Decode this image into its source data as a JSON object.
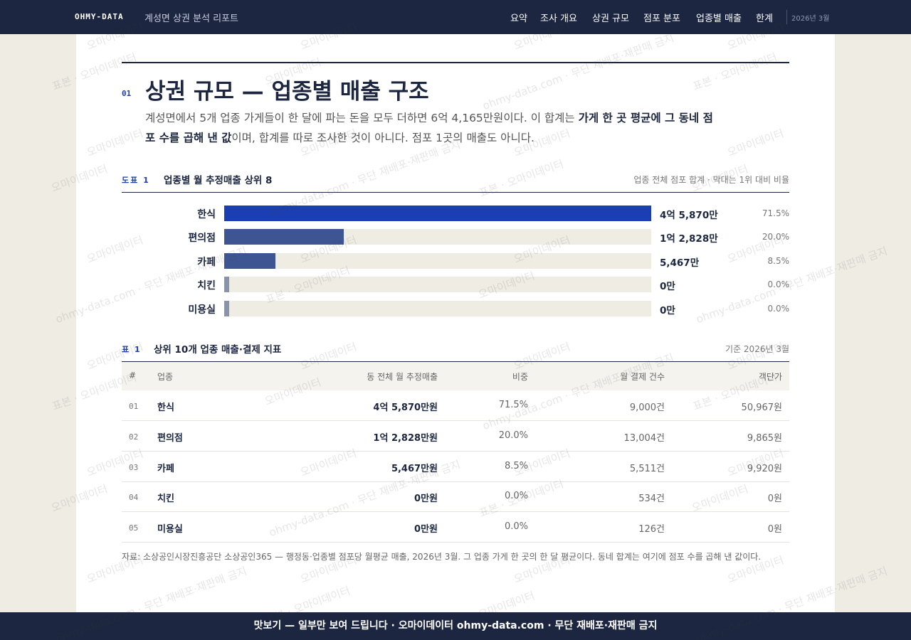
{
  "nav": {
    "brand": "OHMY-DATA",
    "subtitle": "계성면 상권 분석 리포트",
    "links": [
      "요약",
      "조사 개요",
      "상권 규모",
      "점포 분포",
      "업종별 매출",
      "한계"
    ],
    "date": "2026년 3월"
  },
  "section": {
    "number": "01",
    "title": "상권 규모 — 업종별 매출 구조",
    "lead": [
      "계성면에서 5개 업종 가게들이 한 달에 파는 돈을 모두 더하면 6억 4,165만원이다. 이 합계는 ",
      "가게 한 곳 평균에 그 동네 점포 수를 곱해 낸 값",
      "이며, 합계를 따로 조사한 것이 아니다. 점포 1곳의 매출도 아니다."
    ]
  },
  "chart_data": {
    "type": "bar",
    "orientation": "horizontal",
    "label": "도표 1",
    "title": "업종별 월 추정매출 상위 8",
    "note": "업종 전체 점포 합계 · 막대는 1위 대비 비율",
    "categories": [
      "한식",
      "편의점",
      "카페",
      "치킨",
      "미용실"
    ],
    "values": [
      45870,
      12828,
      5467,
      0,
      0
    ],
    "value_labels": [
      "4억 5,870만",
      "1억 2,828만",
      "5,467만",
      "0만",
      "0만"
    ],
    "colors": [
      "#1b3fb3",
      "#3d5592",
      "#3d5592",
      "#8a93ad",
      "#8a93ad"
    ],
    "shares": [
      "71.5%",
      "20.0%",
      "8.5%",
      "0.0%",
      "0.0%"
    ]
  },
  "table": {
    "label": "표 1",
    "title": "상위 10개 업종 매출·결제 지표",
    "note": "기준 2026년 3월",
    "headers": [
      "#",
      "업종",
      "동 전체 월 추정매출",
      "비중",
      "월 결제 건수",
      "객단가"
    ],
    "rows": [
      [
        "01",
        "한식",
        "4억 5,870만원",
        "71.5%",
        "9,000건",
        "50,967원"
      ],
      [
        "02",
        "편의점",
        "1억 2,828만원",
        "20.0%",
        "13,004건",
        "9,865원"
      ],
      [
        "03",
        "카페",
        "5,467만원",
        "8.5%",
        "5,511건",
        "9,920원"
      ],
      [
        "04",
        "치킨",
        "0만원",
        "0.0%",
        "534건",
        "0원"
      ],
      [
        "05",
        "미용실",
        "0만원",
        "0.0%",
        "126건",
        "0원"
      ]
    ]
  },
  "source": "자료: 소상공인시장진흥공단 소상공인365 — 행정동·업종별 점포당 월평균 매출, 2026년 3월. 그 업종 가게 한 곳의 한 달 평균이다. 동네 합계는 여기에 점포 수를 곱해 낸 값이다.",
  "footer": "맛보기 — 일부만 보여 드립니다 · 오마이데이터 ohmy-data.com · 무단 재배포·재판매 금지",
  "watermarks": [
    "표본 · 오마이데이터",
    "오마이데이터",
    "ohmy-data.com · 무단 재배포·재판매 금지"
  ]
}
